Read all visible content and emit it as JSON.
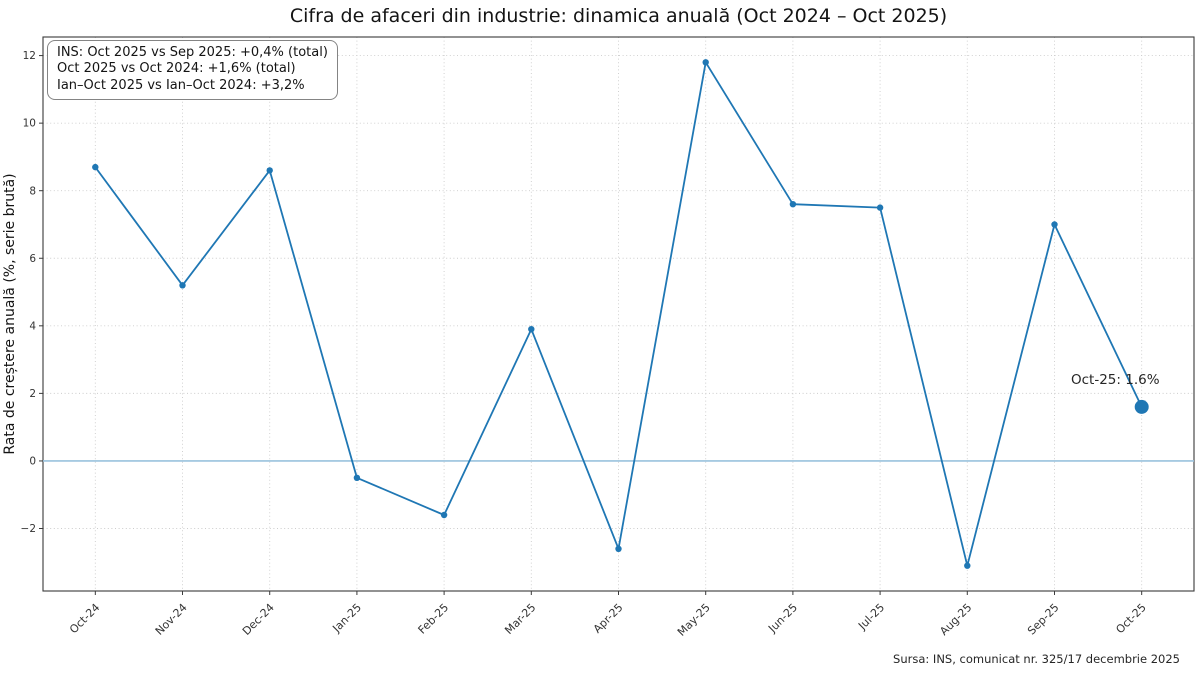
{
  "title": "Cifra de afaceri din industrie: dinamica anuală (Oct 2024 – Oct 2025)",
  "annotation_box": {
    "lines": [
      "INS: Oct 2025 vs Sep 2025: +0,4% (total)",
      "Oct 2025 vs Oct 2024: +1,6% (total)",
      "Ian–Oct 2025 vs Ian–Oct 2024: +3,2%"
    ]
  },
  "point_annotation": "Oct-25: 1.6%",
  "source": "Sursa: INS, comunicat nr. 325/17 decembrie 2025",
  "chart_data": {
    "type": "line",
    "categories": [
      "Oct-24",
      "Nov-24",
      "Dec-24",
      "Jan-25",
      "Feb-25",
      "Mar-25",
      "Apr-25",
      "May-25",
      "Jun-25",
      "Jul-25",
      "Aug-25",
      "Sep-25",
      "Oct-25"
    ],
    "values": [
      8.7,
      5.2,
      8.6,
      -0.5,
      -1.6,
      3.9,
      -2.6,
      11.8,
      7.6,
      7.5,
      -3.1,
      7.0,
      1.6
    ],
    "title": "Cifra de afaceri din industrie: dinamica anuală (Oct 2024 – Oct 2025)",
    "xlabel": "",
    "ylabel": "Rata de creștere anuală (%, serie brută)",
    "yticks": [
      -2,
      0,
      2,
      4,
      6,
      8,
      10,
      12
    ],
    "ylim": [
      -3.85,
      12.55
    ],
    "grid": true,
    "legend_position": "none",
    "zero_line": 0,
    "line_color": "#1f77b4",
    "marker_color": "#1f77b4",
    "zero_line_color": "#9ac2dd",
    "grid_color": "#cccccc",
    "spine_color": "#3a3a3a",
    "highlight_last_point": true
  }
}
